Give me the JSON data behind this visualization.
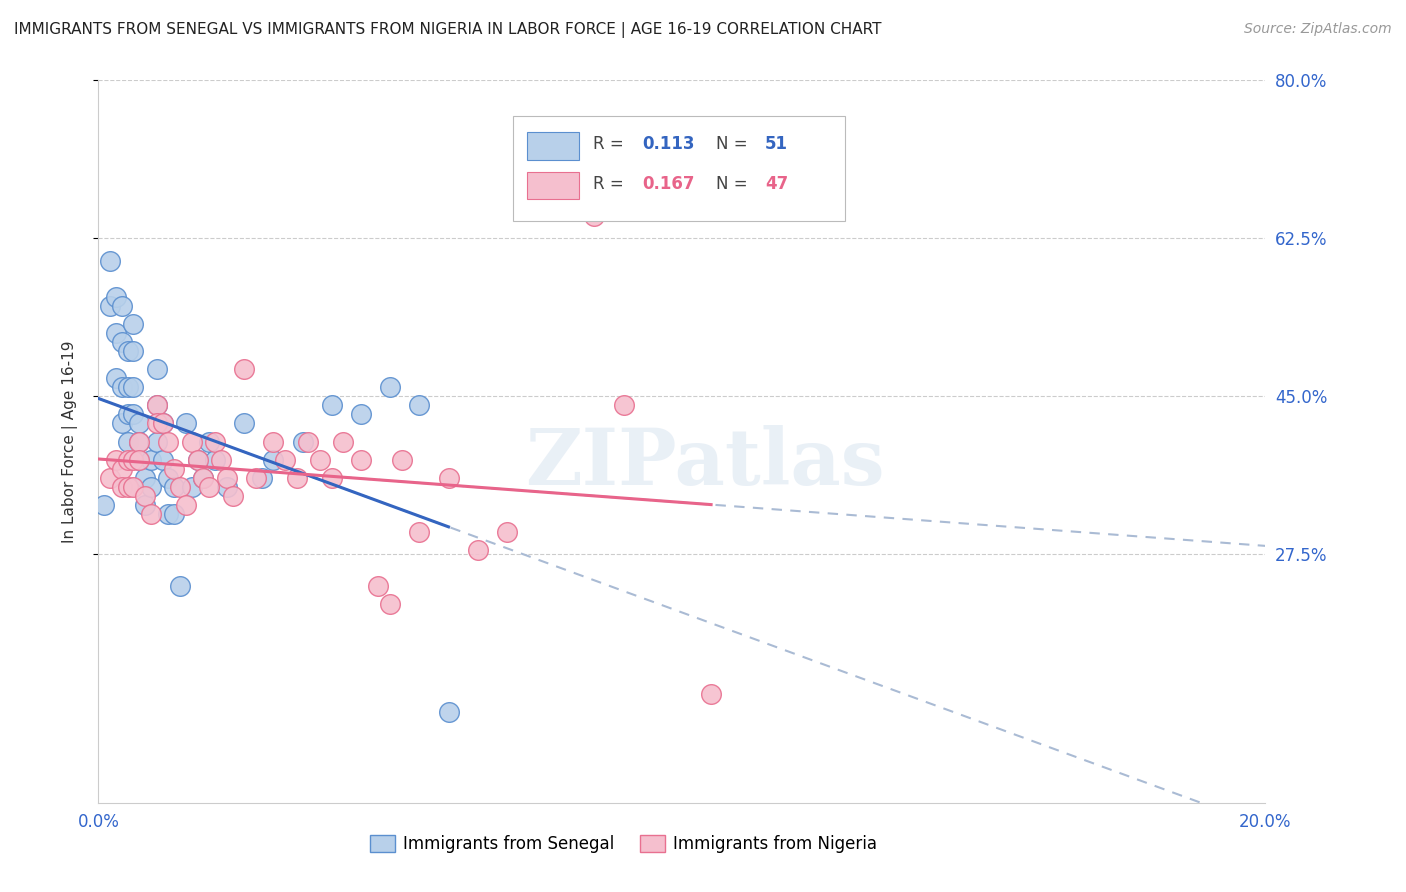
{
  "title": "IMMIGRANTS FROM SENEGAL VS IMMIGRANTS FROM NIGERIA IN LABOR FORCE | AGE 16-19 CORRELATION CHART",
  "source": "Source: ZipAtlas.com",
  "ylabel": "In Labor Force | Age 16-19",
  "xlim": [
    0.0,
    0.2
  ],
  "ylim": [
    0.0,
    0.8
  ],
  "ytick_vals": [
    0.275,
    0.45,
    0.625,
    0.8
  ],
  "ytick_labels": [
    "27.5%",
    "45.0%",
    "62.5%",
    "80.0%"
  ],
  "grid_color": "#cccccc",
  "background_color": "#ffffff",
  "senegal_color": "#b8d0ea",
  "nigeria_color": "#f5bfce",
  "senegal_edge_color": "#5b8fcf",
  "nigeria_edge_color": "#e87090",
  "senegal_line_color": "#3465c0",
  "nigeria_line_color": "#e8648a",
  "dashed_line_color": "#aabbd4",
  "r_senegal": 0.113,
  "n_senegal": 51,
  "r_nigeria": 0.167,
  "n_nigeria": 47,
  "legend_label_senegal": "Immigrants from Senegal",
  "legend_label_nigeria": "Immigrants from Nigeria",
  "senegal_x": [
    0.001,
    0.002,
    0.002,
    0.003,
    0.003,
    0.003,
    0.004,
    0.004,
    0.004,
    0.004,
    0.005,
    0.005,
    0.005,
    0.005,
    0.006,
    0.006,
    0.006,
    0.006,
    0.007,
    0.007,
    0.007,
    0.008,
    0.008,
    0.009,
    0.009,
    0.01,
    0.01,
    0.01,
    0.011,
    0.011,
    0.012,
    0.012,
    0.013,
    0.013,
    0.014,
    0.015,
    0.016,
    0.017,
    0.018,
    0.019,
    0.02,
    0.022,
    0.025,
    0.028,
    0.03,
    0.035,
    0.04,
    0.045,
    0.05,
    0.055,
    0.06
  ],
  "senegal_y": [
    0.33,
    0.6,
    0.55,
    0.56,
    0.52,
    0.47,
    0.55,
    0.51,
    0.46,
    0.42,
    0.5,
    0.46,
    0.43,
    0.4,
    0.53,
    0.5,
    0.46,
    0.43,
    0.42,
    0.4,
    0.38,
    0.36,
    0.33,
    0.38,
    0.35,
    0.48,
    0.44,
    0.4,
    0.42,
    0.38,
    0.36,
    0.32,
    0.35,
    0.32,
    0.24,
    0.42,
    0.35,
    0.38,
    0.36,
    0.4,
    0.38,
    0.35,
    0.42,
    0.36,
    0.38,
    0.4,
    0.44,
    0.43,
    0.46,
    0.44,
    0.1
  ],
  "nigeria_x": [
    0.002,
    0.003,
    0.004,
    0.004,
    0.005,
    0.005,
    0.006,
    0.006,
    0.007,
    0.007,
    0.008,
    0.009,
    0.01,
    0.01,
    0.011,
    0.012,
    0.013,
    0.014,
    0.015,
    0.016,
    0.017,
    0.018,
    0.019,
    0.02,
    0.021,
    0.022,
    0.023,
    0.025,
    0.027,
    0.03,
    0.032,
    0.034,
    0.036,
    0.038,
    0.04,
    0.042,
    0.045,
    0.048,
    0.05,
    0.052,
    0.055,
    0.06,
    0.065,
    0.07,
    0.085,
    0.09,
    0.105
  ],
  "nigeria_y": [
    0.36,
    0.38,
    0.37,
    0.35,
    0.38,
    0.35,
    0.38,
    0.35,
    0.4,
    0.38,
    0.34,
    0.32,
    0.44,
    0.42,
    0.42,
    0.4,
    0.37,
    0.35,
    0.33,
    0.4,
    0.38,
    0.36,
    0.35,
    0.4,
    0.38,
    0.36,
    0.34,
    0.48,
    0.36,
    0.4,
    0.38,
    0.36,
    0.4,
    0.38,
    0.36,
    0.4,
    0.38,
    0.24,
    0.22,
    0.38,
    0.3,
    0.36,
    0.28,
    0.3,
    0.65,
    0.44,
    0.12
  ]
}
